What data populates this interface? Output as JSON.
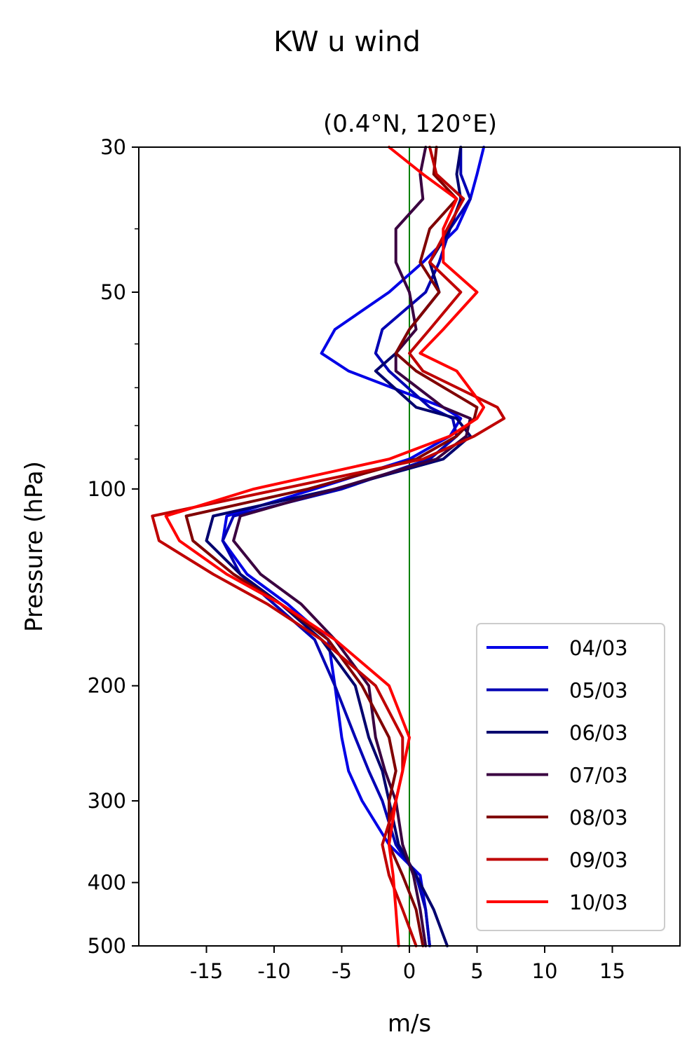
{
  "chart_data": {
    "type": "line",
    "suptitle": "KW u wind",
    "title": "(0.4°N, 120°E)",
    "xlabel": "m/s",
    "ylabel": "Pressure (hPa)",
    "xlim": [
      -20,
      20
    ],
    "ylim": [
      500,
      30
    ],
    "yscale": "log",
    "x_ticks": [
      -15,
      -10,
      -5,
      0,
      5,
      10,
      15
    ],
    "x_tick_labels": [
      "-15",
      "-10",
      "-5",
      "0",
      "5",
      "10",
      "15"
    ],
    "y_ticks": [
      30,
      50,
      100,
      200,
      300,
      400,
      500
    ],
    "y_tick_labels": [
      "30",
      "50",
      "100",
      "200",
      "300",
      "400",
      "500"
    ],
    "grid": false,
    "legend_position": "lower right",
    "zero_line_color": "#008000",
    "series": [
      {
        "name": "04/03",
        "color": "#0000e6",
        "x": [
          5.5,
          5.0,
          4.5,
          3.5,
          1,
          -1.5,
          -5.5,
          -6.5,
          -4.5,
          2.5,
          3.8,
          3.0,
          0,
          -7,
          -13.5,
          -13.8,
          -12,
          -9,
          -6,
          -5.5,
          -5,
          -4.5,
          -3.5,
          -1.5,
          0.8,
          1.2,
          1.5
        ],
        "y": [
          30,
          33,
          36,
          40,
          45,
          50,
          57,
          62,
          66,
          75,
          78,
          83,
          90,
          100,
          110,
          120,
          135,
          150,
          170,
          200,
          240,
          270,
          300,
          350,
          390,
          440,
          500
        ]
      },
      {
        "name": "05/03",
        "color": "#0000b3",
        "x": [
          3.8,
          3.8,
          4.5,
          3.0,
          2.2,
          1.2,
          -2,
          -2.5,
          -1.5,
          1.5,
          3.2,
          3.5,
          1.5,
          -5,
          -13.0,
          -13.8,
          -12.5,
          -10,
          -7,
          -5.5,
          -4,
          -3,
          -2,
          -1,
          0.5,
          1.2,
          1.5
        ],
        "y": [
          30,
          33,
          36,
          40,
          45,
          50,
          57,
          62,
          66,
          75,
          78,
          83,
          90,
          100,
          110,
          120,
          135,
          150,
          170,
          200,
          240,
          270,
          300,
          350,
          390,
          440,
          500
        ]
      },
      {
        "name": "06/03",
        "color": "#00006e",
        "x": [
          3.8,
          3.5,
          3.8,
          3.0,
          1.5,
          2.2,
          0,
          -1,
          -2.5,
          0.5,
          3.5,
          4.5,
          2.5,
          -5.5,
          -14.5,
          -15.0,
          -12.5,
          -9.5,
          -6.5,
          -4,
          -3,
          -2,
          -1.5,
          -0.8,
          0.5,
          1.8,
          2.8
        ],
        "y": [
          30,
          33,
          36,
          40,
          45,
          50,
          57,
          62,
          66,
          75,
          78,
          83,
          90,
          100,
          110,
          120,
          135,
          150,
          170,
          200,
          240,
          270,
          300,
          350,
          390,
          440,
          500
        ]
      },
      {
        "name": "07/03",
        "color": "#3a0040",
        "x": [
          1.2,
          0.8,
          1.0,
          -1.0,
          -1.0,
          0,
          0.5,
          -1,
          -1,
          2.5,
          4.5,
          4.2,
          2.0,
          -5.5,
          -12.5,
          -13.0,
          -11.0,
          -8,
          -5.5,
          -3,
          -2.5,
          -1.8,
          -1,
          -0.5,
          0.3,
          0.8,
          1.2
        ],
        "y": [
          30,
          33,
          36,
          40,
          45,
          50,
          57,
          62,
          66,
          75,
          78,
          83,
          90,
          100,
          110,
          120,
          135,
          150,
          170,
          200,
          240,
          270,
          300,
          350,
          390,
          440,
          500
        ]
      },
      {
        "name": "08/03",
        "color": "#800000",
        "x": [
          2.0,
          1.8,
          3.5,
          1.5,
          0.8,
          2.2,
          0,
          -1,
          0.5,
          5,
          4.8,
          3.5,
          0.5,
          -7.5,
          -16.5,
          -16.0,
          -13.0,
          -9.5,
          -6.0,
          -3.5,
          -1.5,
          -1.0,
          -1.5,
          -1.5,
          -0.5,
          0.5,
          1.0
        ],
        "y": [
          30,
          33,
          36,
          40,
          45,
          50,
          57,
          62,
          66,
          75,
          78,
          83,
          90,
          100,
          110,
          120,
          135,
          150,
          170,
          200,
          240,
          270,
          300,
          350,
          390,
          440,
          500
        ]
      },
      {
        "name": "09/03",
        "color": "#bf0000",
        "x": [
          1.5,
          2.0,
          4.0,
          2.8,
          1.5,
          3.8,
          1.5,
          0,
          1,
          6.5,
          7.0,
          4.8,
          1.0,
          -9.5,
          -19.0,
          -18.5,
          -14.5,
          -10.5,
          -6.5,
          -2.5,
          -0.5,
          -0.5,
          -1,
          -2,
          -1.5,
          -0.5,
          0.5
        ],
        "y": [
          30,
          33,
          36,
          40,
          45,
          50,
          57,
          62,
          66,
          75,
          78,
          83,
          90,
          100,
          110,
          120,
          135,
          150,
          170,
          200,
          240,
          270,
          300,
          350,
          390,
          440,
          500
        ]
      },
      {
        "name": "10/03",
        "color": "#ff0000",
        "x": [
          -1.5,
          1.0,
          3.5,
          2.5,
          2.5,
          5.0,
          2.5,
          0.8,
          3.5,
          5.5,
          5.0,
          3.0,
          -1.5,
          -11.5,
          -18.0,
          -17.0,
          -13.5,
          -9.5,
          -5.5,
          -1.5,
          0,
          -0.5,
          -1,
          -1.5,
          -1.2,
          -1,
          -0.8
        ],
        "y": [
          30,
          33,
          36,
          40,
          45,
          50,
          57,
          62,
          66,
          75,
          78,
          83,
          90,
          100,
          110,
          120,
          135,
          150,
          170,
          200,
          240,
          270,
          300,
          350,
          390,
          440,
          500
        ]
      }
    ]
  }
}
